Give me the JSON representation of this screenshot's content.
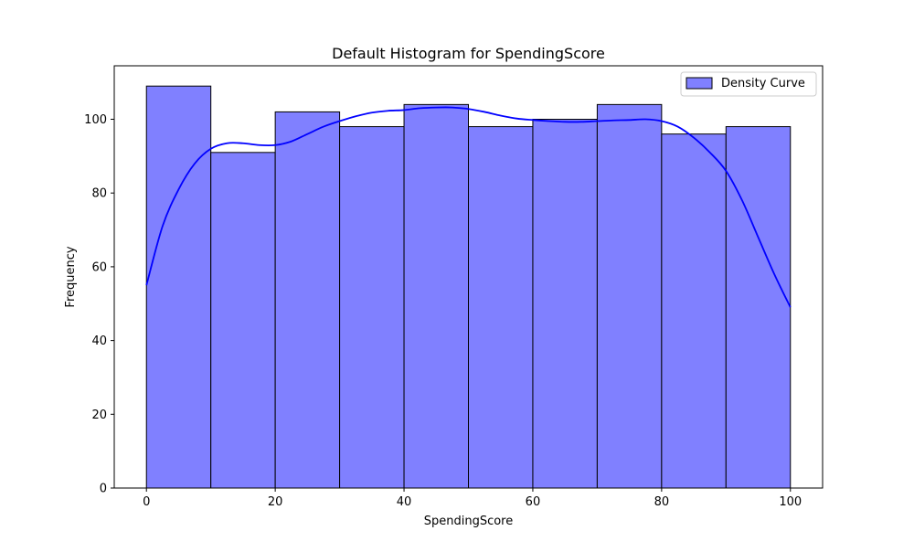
{
  "chart_data": {
    "type": "bar",
    "title": "Default Histogram for SpendingScore",
    "xlabel": "SpendingScore",
    "ylabel": "Frequency",
    "bins": [
      {
        "x0": 0,
        "x1": 10,
        "count": 109
      },
      {
        "x0": 10,
        "x1": 20,
        "count": 91
      },
      {
        "x0": 20,
        "x1": 30,
        "count": 102
      },
      {
        "x0": 30,
        "x1": 40,
        "count": 98
      },
      {
        "x0": 40,
        "x1": 50,
        "count": 104
      },
      {
        "x0": 50,
        "x1": 60,
        "count": 98
      },
      {
        "x0": 60,
        "x1": 70,
        "count": 100
      },
      {
        "x0": 70,
        "x1": 80,
        "count": 104
      },
      {
        "x0": 80,
        "x1": 90,
        "count": 96
      },
      {
        "x0": 90,
        "x1": 100,
        "count": 98
      }
    ],
    "density_curve": {
      "name": "Density Curve",
      "x": [
        0,
        2.5,
        5,
        7.5,
        10,
        12.5,
        15,
        17.5,
        20,
        22.5,
        25,
        27.5,
        30,
        32.5,
        35,
        37.5,
        40,
        42.5,
        45,
        47.5,
        50,
        52.5,
        55,
        57.5,
        60,
        62.5,
        65,
        67.5,
        70,
        72.5,
        75,
        77.5,
        80,
        82.5,
        85,
        87.5,
        90,
        92.5,
        95,
        97.5,
        100
      ],
      "y": [
        55,
        71,
        81,
        88,
        92,
        93.5,
        93.5,
        93,
        93,
        94,
        96,
        98,
        99.5,
        100.8,
        101.8,
        102.3,
        102.5,
        103,
        103.2,
        103.2,
        102.8,
        102,
        101,
        100.2,
        99.8,
        99.5,
        99.3,
        99.3,
        99.5,
        99.7,
        99.8,
        100,
        99.5,
        98,
        95,
        91,
        86,
        78,
        68,
        58,
        49
      ]
    },
    "xlim": [
      -5,
      105
    ],
    "ylim": [
      0,
      114.5
    ],
    "xticks": [
      0,
      20,
      40,
      60,
      80,
      100
    ],
    "yticks": [
      0,
      20,
      40,
      60,
      80,
      100
    ],
    "legend": {
      "entries": [
        "Density Curve"
      ],
      "position": "top-right"
    },
    "grid": false,
    "colors": {
      "bar_fill": "#8080ff",
      "bar_edge": "#000000",
      "curve": "#0000ff"
    }
  }
}
